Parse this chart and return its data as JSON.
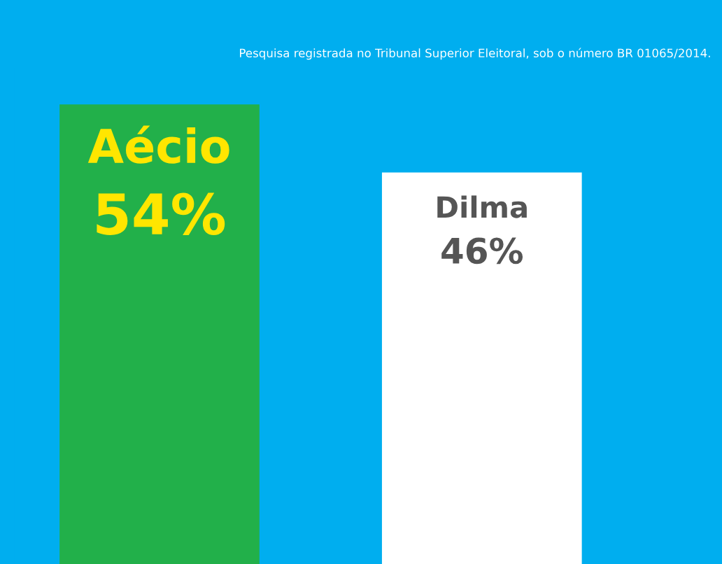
{
  "chart_data": {
    "type": "bar",
    "categories": [
      "Aécio",
      "Dilma"
    ],
    "values": [
      54,
      46
    ],
    "colors": [
      "#22b04a",
      "#ffffff"
    ],
    "value_labels": [
      "54%",
      "46%"
    ],
    "annotations": [
      "Pesquisa registrada no Tribunal Superior Eleitoral, sob o número BR 01065/2014."
    ]
  }
}
